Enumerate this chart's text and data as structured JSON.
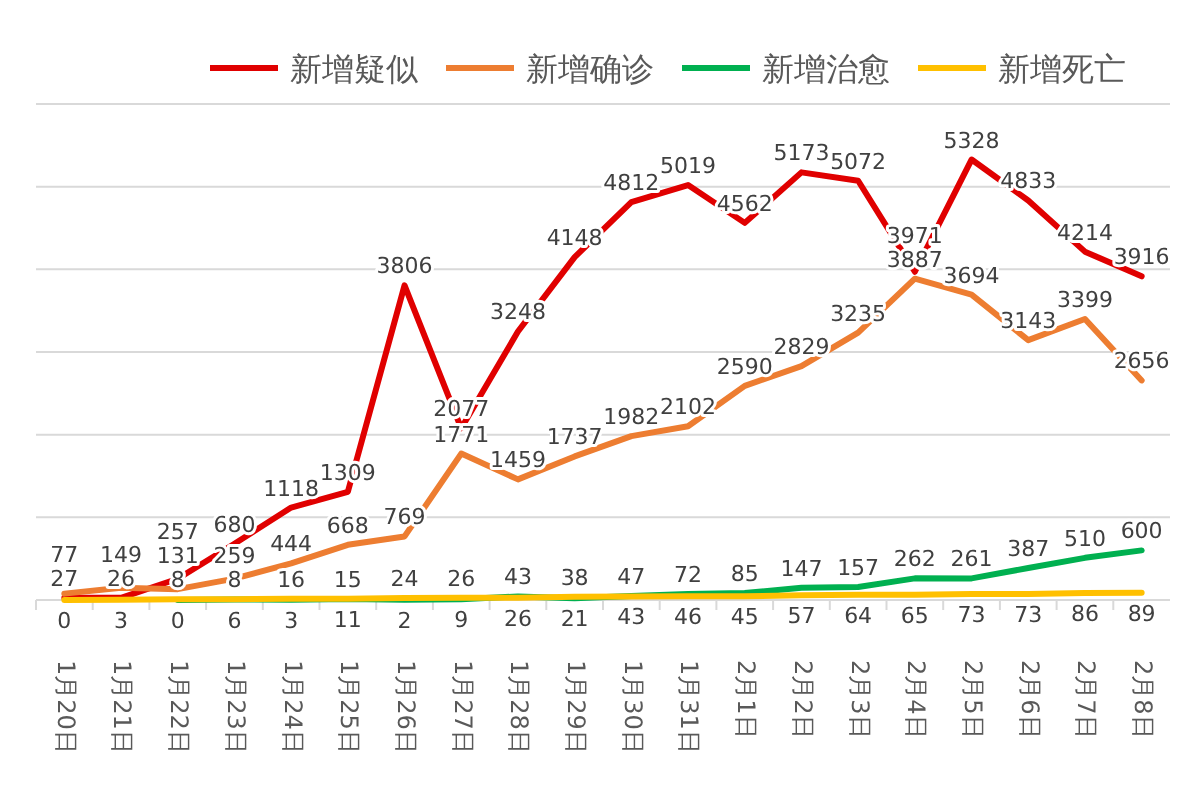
{
  "chart_data": {
    "type": "line",
    "categories": [
      "1月20日",
      "1月21日",
      "1月22日",
      "1月23日",
      "1月24日",
      "1月25日",
      "1月26日",
      "1月27日",
      "1月28日",
      "1月29日",
      "1月30日",
      "1月31日",
      "2月1日",
      "2月2日",
      "2月3日",
      "2月4日",
      "2月5日",
      "2月6日",
      "2月7日",
      "2月8日"
    ],
    "series": [
      {
        "name": "新增疑似",
        "color": "#e00000",
        "values": [
          27,
          26,
          257,
          680,
          1118,
          1309,
          3806,
          2077,
          3248,
          4148,
          4812,
          5019,
          4562,
          5173,
          5072,
          3971,
          5328,
          4833,
          4214,
          3916
        ]
      },
      {
        "name": "新增确诊",
        "color": "#ed7d31",
        "values": [
          77,
          149,
          131,
          259,
          444,
          668,
          769,
          1771,
          1459,
          1737,
          1982,
          2102,
          2590,
          2829,
          3235,
          3887,
          3694,
          3143,
          3399,
          2656
        ]
      },
      {
        "name": "新增治愈",
        "color": "#00b050",
        "values": [
          null,
          null,
          0,
          6,
          3,
          11,
          2,
          9,
          43,
          21,
          47,
          72,
          85,
          147,
          157,
          262,
          261,
          387,
          510,
          600
        ]
      },
      {
        "name": "新增死亡",
        "color": "#ffc000",
        "values": [
          0,
          3,
          8,
          8,
          16,
          15,
          24,
          26,
          26,
          38,
          43,
          46,
          45,
          57,
          64,
          65,
          73,
          73,
          86,
          89
        ]
      }
    ],
    "ylim": [
      0,
      6000
    ],
    "yticks": [
      0,
      1000,
      2000,
      3000,
      4000,
      5000,
      6000
    ],
    "tick_labels": "x",
    "grid": "y",
    "legend": "top",
    "data_labels": true,
    "marker": "none",
    "line_style": "solid"
  }
}
